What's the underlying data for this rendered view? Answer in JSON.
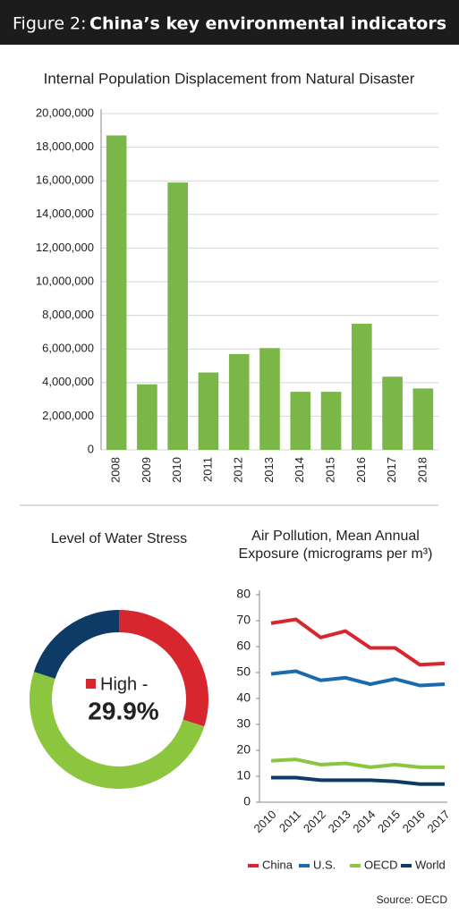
{
  "header": {
    "figure": "Figure 2:",
    "title": "China’s key environmental indicators"
  },
  "source": "Source: OECD",
  "chart_data": [
    {
      "type": "bar",
      "title": "Internal Population Displacement from Natural Disaster",
      "categories": [
        "2008",
        "2009",
        "2010",
        "2011",
        "2012",
        "2013",
        "2014",
        "2015",
        "2016",
        "2017",
        "2018"
      ],
      "values": [
        18700000,
        3900000,
        15900000,
        4600000,
        5700000,
        6050000,
        3450000,
        3450000,
        7500000,
        4350000,
        3650000
      ],
      "color": "#7ab648",
      "ylim": [
        0,
        20000000
      ],
      "yticks": [
        0,
        {
          "value": 2000000,
          "label": "2,000,000"
        },
        {
          "value": 4000000,
          "label": "4,000,000"
        },
        {
          "value": 6000000,
          "label": "6,000,000"
        },
        {
          "value": 8000000,
          "label": "8,000,000"
        },
        {
          "value": 10000000,
          "label": "10,000,000"
        },
        {
          "value": 12000000,
          "label": "12,000,000"
        },
        {
          "value": 14000000,
          "label": "14,000,000"
        },
        {
          "value": 16000000,
          "label": "16,000,000"
        },
        {
          "value": 18000000,
          "label": "18,000,000"
        },
        {
          "value": 20000000,
          "label": "20,000,000"
        }
      ],
      "grid": true
    },
    {
      "type": "donut",
      "title": "Level of Water Stress",
      "values": [
        29.9,
        50.1,
        20
      ],
      "value_labels": [
        "29.9%",
        null,
        null
      ],
      "center_label": "High -",
      "colors": [
        "#d7262e",
        "#8cc63f",
        "#0d3b66"
      ]
    },
    {
      "type": "line",
      "title": "Air Pollution, Mean Annual Exposure (micrograms per m³)",
      "categories": [
        "2010",
        "2011",
        "2012",
        "2013",
        "2014",
        "2015",
        "2016",
        "2017"
      ],
      "series": [
        {
          "name": "China",
          "color": "#d7262e",
          "values": [
            69,
            70.5,
            63.5,
            66,
            59.5,
            59.5,
            53,
            53.5
          ]
        },
        {
          "name": "U.S.",
          "color": "#1a6aad",
          "values": [
            49.5,
            50.5,
            47,
            48,
            45.5,
            47.5,
            45,
            45.5
          ]
        },
        {
          "name": "OECD",
          "color": "#8cc63f",
          "values": [
            16,
            16.5,
            14.5,
            15,
            13.5,
            14.5,
            13.5,
            13.5
          ]
        },
        {
          "name": "World",
          "color": "#0d3b66",
          "values": [
            9.5,
            9.5,
            8.5,
            8.5,
            8.5,
            8,
            7,
            7
          ]
        }
      ],
      "ylim": [
        0,
        80
      ],
      "yticks": [
        0,
        10,
        20,
        30,
        40,
        50,
        60,
        70,
        80
      ],
      "legend": "bottom"
    }
  ]
}
